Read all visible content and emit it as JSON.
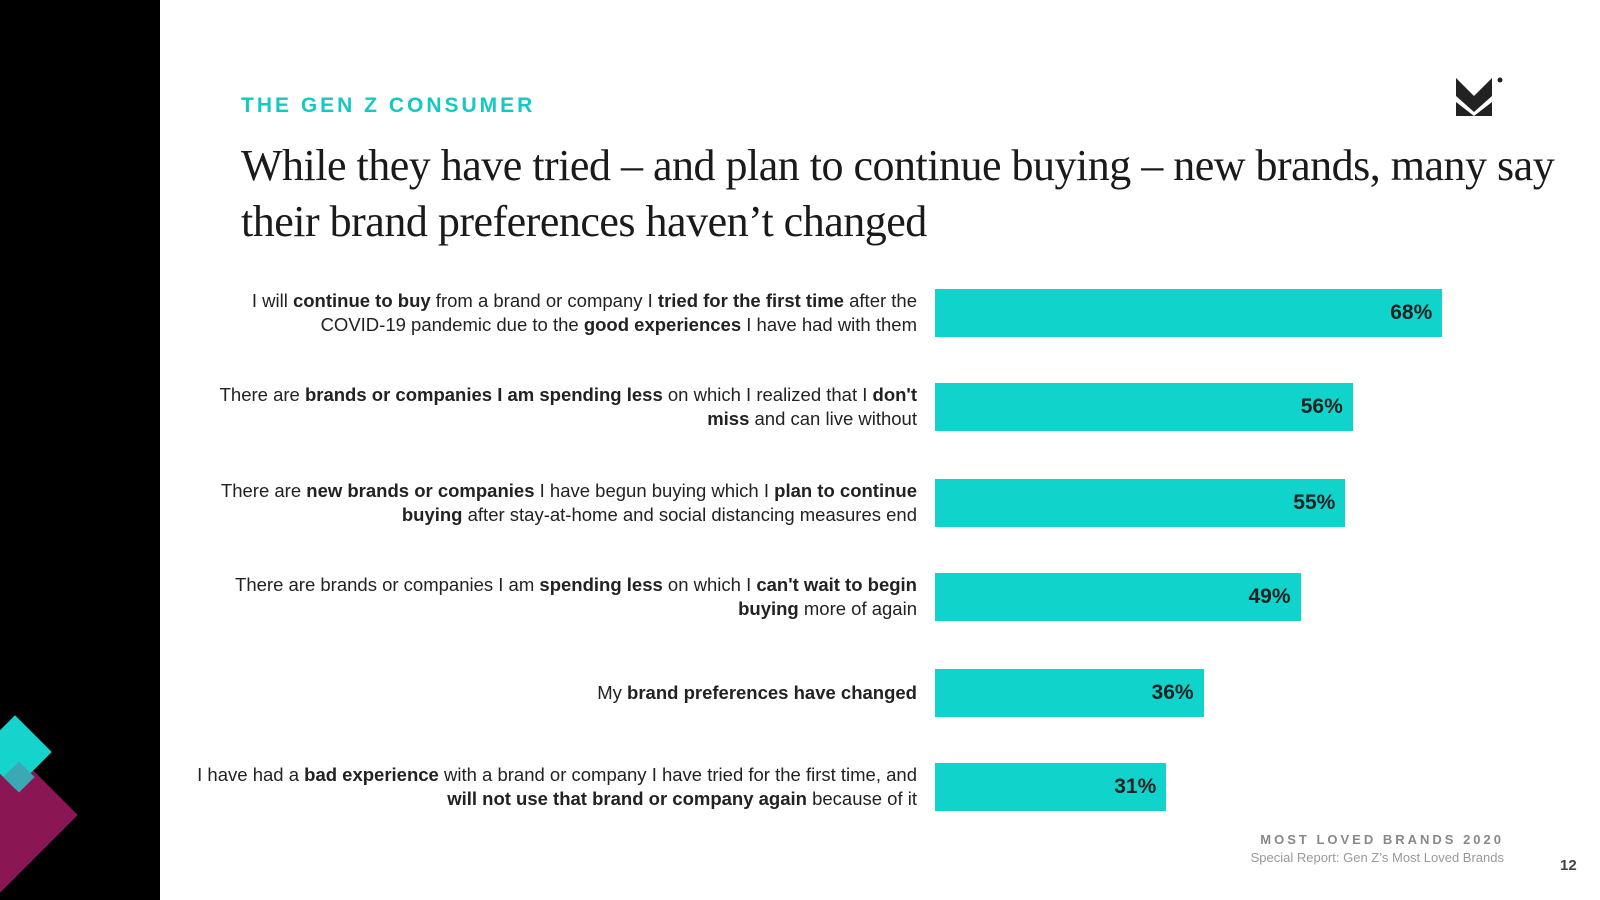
{
  "header": {
    "kicker": "THE GEN Z CONSUMER",
    "title": "While they have tried – and plan to continue buying – new brands, many say their brand preferences haven’t changed",
    "logo_text": "M®"
  },
  "chart_data": {
    "type": "bar",
    "orientation": "horizontal",
    "xlim": [
      0,
      100
    ],
    "categories": [
      [
        [
          "I will ",
          0
        ],
        [
          "continue to buy",
          1
        ],
        [
          " from a brand or company I ",
          0
        ],
        [
          "tried for the first time",
          1
        ],
        [
          " after the COVID-19 pandemic due to the ",
          0
        ],
        [
          "good experiences",
          1
        ],
        [
          " I have had with them",
          0
        ]
      ],
      [
        [
          "There are ",
          0
        ],
        [
          "brands or companies I am spending less",
          1
        ],
        [
          " on which I realized that I ",
          0
        ],
        [
          "don't miss",
          1
        ],
        [
          " and can live without",
          0
        ]
      ],
      [
        [
          "There are ",
          0
        ],
        [
          "new brands or companies",
          1
        ],
        [
          " I have begun buying which I ",
          0
        ],
        [
          "plan to continue buying",
          1
        ],
        [
          " after stay-at-home and social distancing measures end",
          0
        ]
      ],
      [
        [
          "There are brands or companies I am ",
          0
        ],
        [
          "spending less",
          1
        ],
        [
          " on which I ",
          0
        ],
        [
          "can't wait to begin buying",
          1
        ],
        [
          " more of again",
          0
        ]
      ],
      [
        [
          "My ",
          0
        ],
        [
          "brand preferences have changed",
          1
        ]
      ],
      [
        [
          "I have had a ",
          0
        ],
        [
          "bad experience",
          1
        ],
        [
          " with a brand or company I have tried for the first time, and ",
          0
        ],
        [
          "will not use that brand or company again",
          1
        ],
        [
          " because of it",
          0
        ]
      ]
    ],
    "values": [
      68,
      56,
      55,
      49,
      36,
      31
    ],
    "value_labels": [
      "68%",
      "56%",
      "55%",
      "49%",
      "36%",
      "31%"
    ],
    "bar_color": "#10d4cc"
  },
  "footer": {
    "report": "MOST LOVED BRANDS 2020",
    "subtitle": "Special Report: Gen Z’s Most Loved Brands",
    "page": "12"
  }
}
